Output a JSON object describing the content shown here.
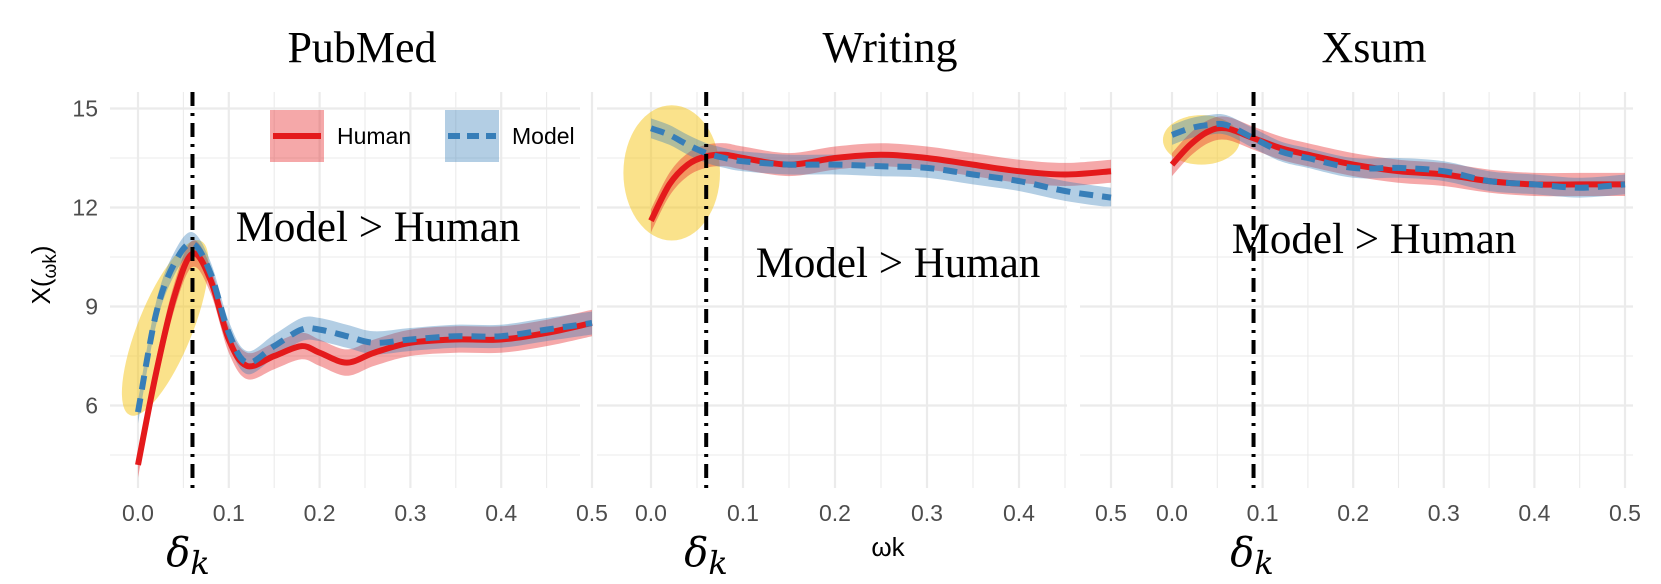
{
  "chart_data": {
    "type": "line",
    "ylabel_main": "X(",
    "ylabel_sub": "ωk",
    "ylabel_close": ")",
    "xlabel": "ωk",
    "xlim": [
      0,
      0.5
    ],
    "ylim": [
      3.5,
      15.5
    ],
    "xticks": [
      "0.0",
      "0.1",
      "0.2",
      "0.3",
      "0.4",
      "0.5"
    ],
    "yticks": [
      "6",
      "9",
      "12",
      "15"
    ],
    "ytick_values": [
      6,
      9,
      12,
      15
    ],
    "grid": true,
    "legend": {
      "placement": "top-right of first panel",
      "entries": [
        {
          "name": "Human",
          "color": "#e41a1c",
          "style": "solid"
        },
        {
          "name": "Model",
          "color": "#377eb8",
          "style": "dashed"
        }
      ]
    },
    "highlight_color": "#f5c518",
    "panels": [
      {
        "title": "PubMed",
        "delta_label": "δk",
        "delta_value": 0.06,
        "annotation": "Model > Human",
        "x": [
          0.0,
          0.02,
          0.04,
          0.06,
          0.08,
          0.1,
          0.12,
          0.15,
          0.18,
          0.2,
          0.23,
          0.26,
          0.3,
          0.35,
          0.4,
          0.45,
          0.5
        ],
        "series": [
          {
            "name": "Human",
            "values": [
              4.2,
              7.0,
              9.3,
              10.6,
              9.8,
              8.0,
              7.2,
              7.5,
              7.8,
              7.6,
              7.3,
              7.6,
              7.9,
              8.0,
              8.0,
              8.2,
              8.5
            ],
            "band": 0.4
          },
          {
            "name": "Model",
            "values": [
              5.8,
              8.8,
              10.3,
              10.9,
              10.0,
              8.2,
              7.3,
              7.8,
              8.3,
              8.3,
              8.1,
              7.9,
              8.0,
              8.1,
              8.1,
              8.3,
              8.5
            ],
            "band": 0.35
          }
        ],
        "highlight": {
          "x": [
            0.0,
            0.06
          ],
          "y": [
            5.5,
            11.2
          ]
        }
      },
      {
        "title": "Writing",
        "delta_label": "δk",
        "delta_value": 0.06,
        "annotation": "Model > Human",
        "x": [
          0.0,
          0.02,
          0.04,
          0.06,
          0.08,
          0.1,
          0.15,
          0.2,
          0.25,
          0.3,
          0.35,
          0.4,
          0.45,
          0.5
        ],
        "series": [
          {
            "name": "Human",
            "values": [
              11.6,
              12.7,
              13.3,
              13.55,
              13.6,
              13.5,
              13.3,
              13.5,
              13.6,
              13.5,
              13.3,
              13.1,
              13.0,
              13.1
            ],
            "band": 0.35
          },
          {
            "name": "Model",
            "values": [
              14.4,
              14.2,
              13.9,
              13.65,
              13.5,
              13.4,
              13.3,
              13.3,
              13.25,
              13.2,
              13.0,
              12.8,
              12.5,
              12.3
            ],
            "band": 0.3
          }
        ],
        "highlight": {
          "x": [
            -0.03,
            0.075
          ],
          "y": [
            11.0,
            15.1
          ]
        }
      },
      {
        "title": "Xsum",
        "delta_label": "δk",
        "delta_value": 0.09,
        "annotation": "Model > Human",
        "x": [
          0.0,
          0.02,
          0.04,
          0.06,
          0.09,
          0.12,
          0.15,
          0.2,
          0.25,
          0.3,
          0.35,
          0.4,
          0.45,
          0.5
        ],
        "series": [
          {
            "name": "Human",
            "values": [
              13.3,
              13.9,
              14.3,
              14.4,
              14.1,
              13.8,
              13.6,
              13.3,
              13.1,
              13.0,
              12.8,
              12.7,
              12.7,
              12.7
            ],
            "band": 0.35
          },
          {
            "name": "Model",
            "values": [
              14.2,
              14.4,
              14.5,
              14.5,
              14.1,
              13.7,
              13.5,
              13.2,
              13.2,
              13.1,
              12.8,
              12.7,
              12.6,
              12.7
            ],
            "band": 0.3
          }
        ],
        "highlight": {
          "x": [
            -0.01,
            0.075
          ],
          "y": [
            13.3,
            14.8
          ]
        }
      }
    ]
  }
}
